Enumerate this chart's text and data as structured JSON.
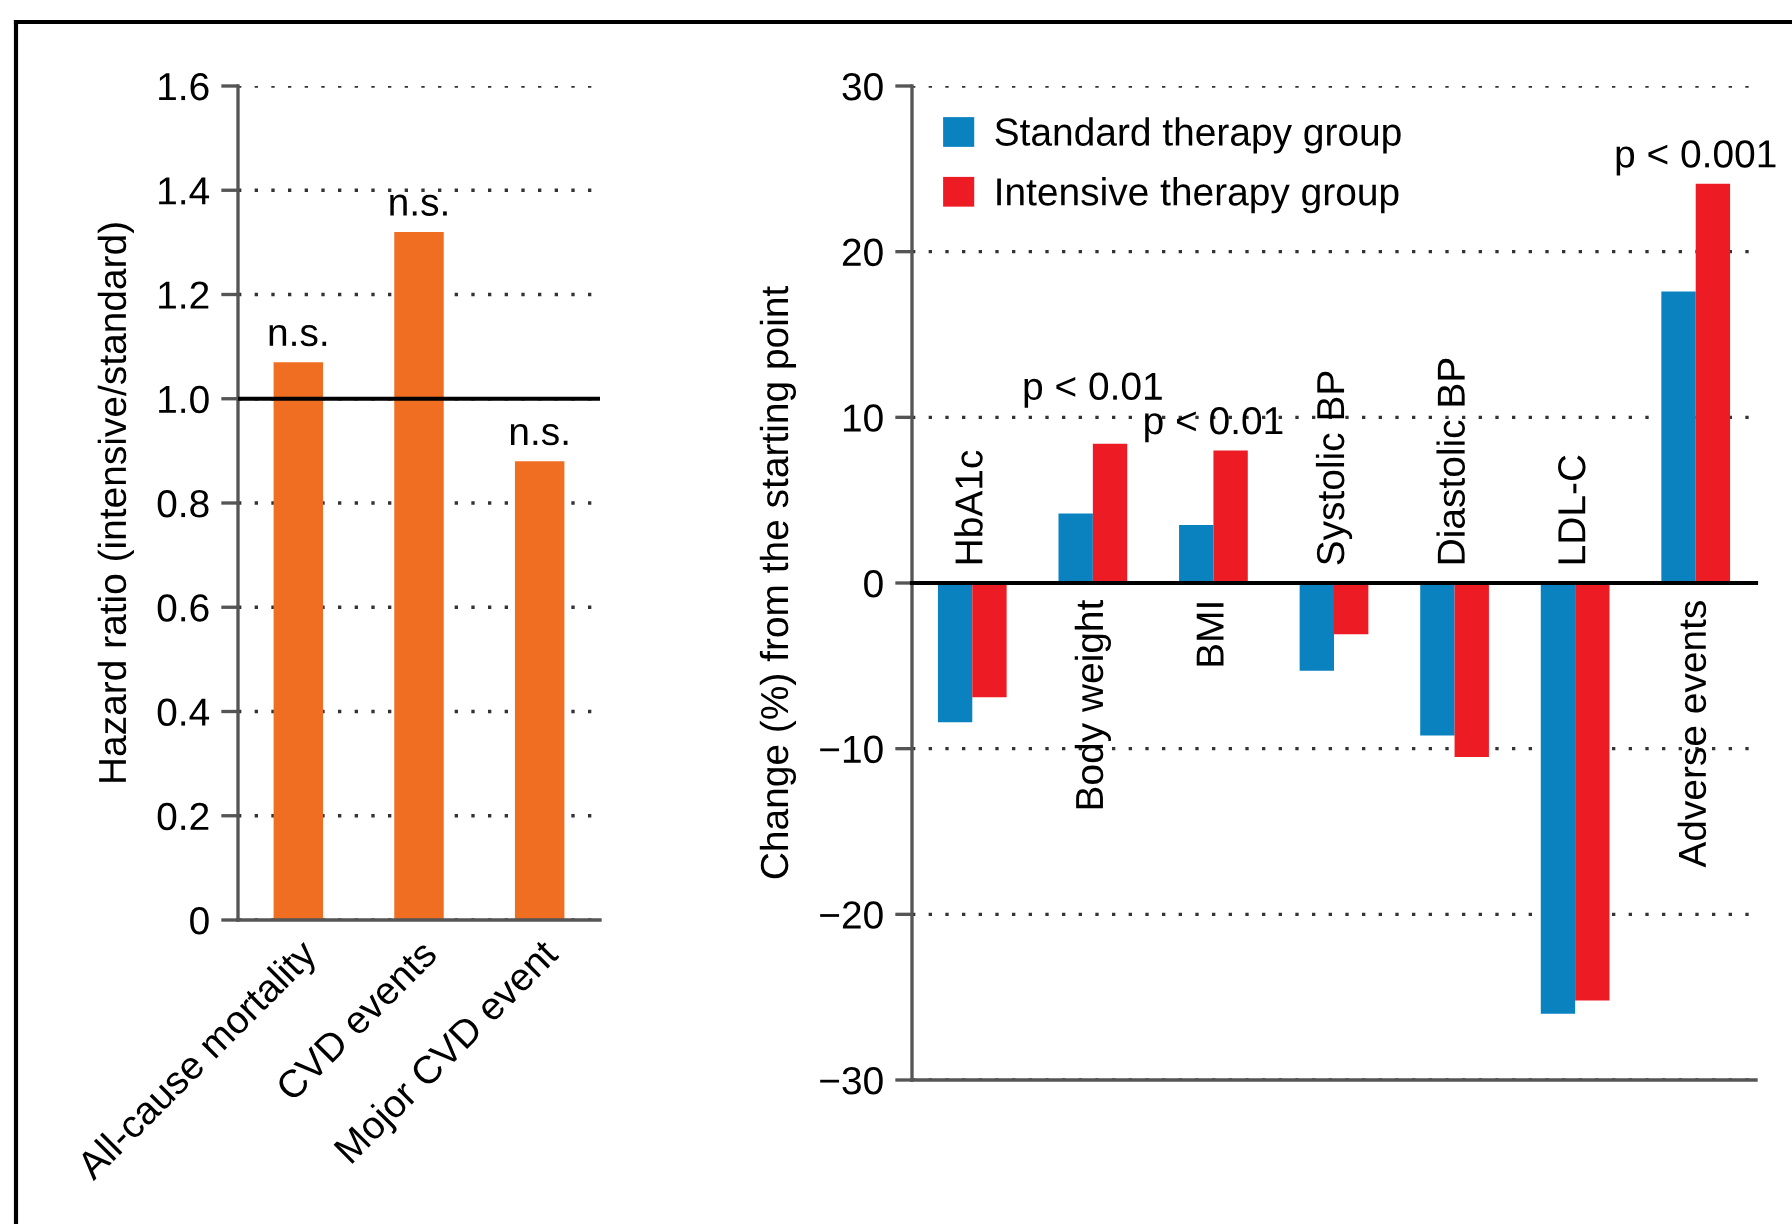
{
  "chart_data": [
    {
      "type": "bar",
      "ylabel": "Hazard ratio (intensive/standard)",
      "categories": [
        "All-cause mortality",
        "CVD events",
        "Mojor CVD event"
      ],
      "values": [
        1.07,
        1.32,
        0.88
      ],
      "color": "#f06e22",
      "ylim": [
        0,
        1.6
      ],
      "yticks": [
        0,
        0.2,
        0.4,
        0.6,
        0.8,
        {
          "value": 1,
          "label": "1.0"
        },
        1.2,
        1.4,
        1.6
      ],
      "grid": "y",
      "ref_lines": [
        {
          "axis": "y",
          "value": 1,
          "color": "#000000"
        }
      ],
      "annotations": [
        {
          "text": "n.s.",
          "x": "All-cause mortality",
          "y": 1.07
        },
        {
          "text": "n.s.",
          "x": "CVD events",
          "y": 1.32
        },
        {
          "text": "n.s.",
          "x": "Mojor CVD event",
          "y": 0.88
        }
      ]
    },
    {
      "type": "bar",
      "ylabel": "Change (%) from the starting point",
      "categories": [
        "HbA1c",
        "Body weight",
        "BMI",
        "Systolic BP",
        "Diastolic BP",
        "LDL-C",
        "Adverse events"
      ],
      "series": [
        {
          "name": "Standard therapy group",
          "color": "#0a82c0",
          "values": [
            -8.4,
            4.2,
            3.5,
            -5.3,
            -9.2,
            -26.0,
            17.6
          ]
        },
        {
          "name": "Intensive therapy group",
          "color": "#ed1c24",
          "values": [
            -6.9,
            8.4,
            8.0,
            -3.1,
            -10.5,
            -25.2,
            24.1
          ]
        }
      ],
      "ylim": [
        -30,
        30
      ],
      "yticks": [
        {
          "value": -30,
          "label": "−30"
        },
        {
          "value": -20,
          "label": "−20"
        },
        {
          "value": -10,
          "label": "−10"
        },
        0,
        10,
        20,
        30
      ],
      "grid": "y",
      "legend": "top left",
      "annotations": [
        {
          "text": "p < 0.01",
          "x": "Body weight",
          "y": 8.4
        },
        {
          "text": "p < 0.01",
          "x": "BMI",
          "y": 8.0
        },
        {
          "text": "p < 0.001",
          "x": "Adverse events",
          "y": 24.1
        }
      ]
    }
  ]
}
